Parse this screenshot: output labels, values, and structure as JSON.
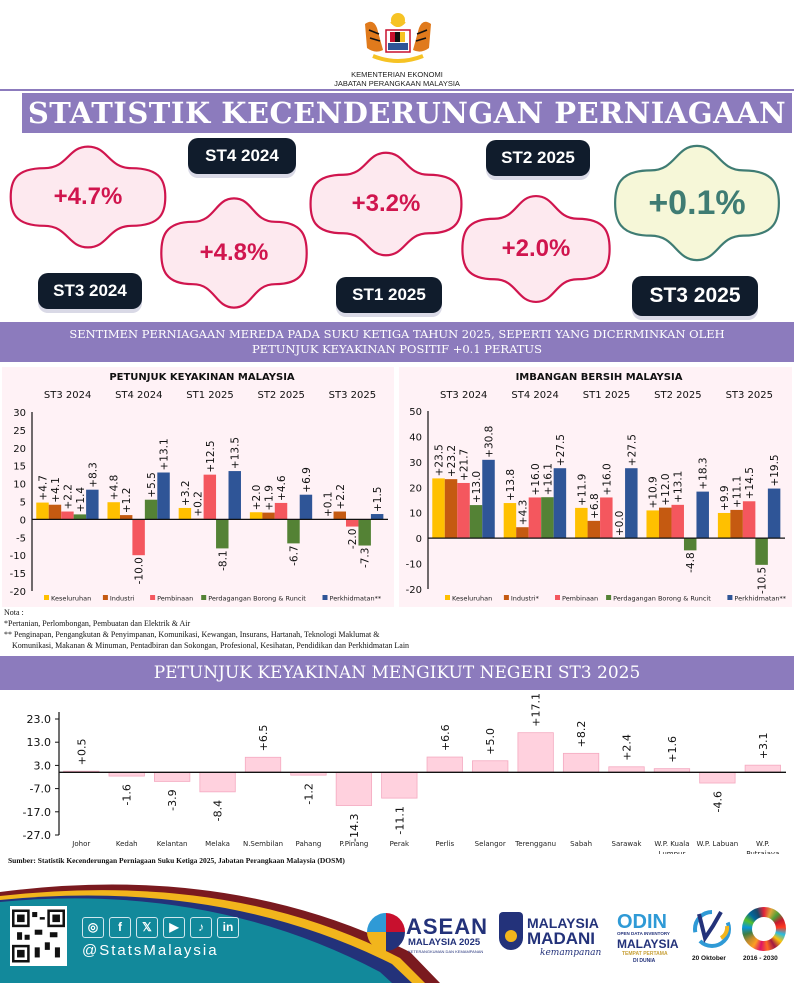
{
  "header": {
    "ministry_line1": "KEMENTERIAN EKONOMI",
    "ministry_line2": "JABATAN PERANGKAAN MALAYSIA",
    "title": "STATISTIK KECENDERUNGAN PERNIAGAAN"
  },
  "highlights": [
    {
      "quarter": "ST3 2024",
      "value": "+4.7%"
    },
    {
      "quarter": "ST4 2024",
      "value": "+4.8%"
    },
    {
      "quarter": "ST1 2025",
      "value": "+3.2%"
    },
    {
      "quarter": "ST2 2025",
      "value": "+2.0%"
    },
    {
      "quarter": "ST3 2025",
      "value": "+0.1%"
    }
  ],
  "colors": {
    "banner": "#8c7bbd",
    "accent_red": "#d0154e",
    "accent_green": "#3f7c73",
    "keseluruhan": "#ffc000",
    "industri": "#c55a11",
    "pembinaan": "#f4575e",
    "perdagangan": "#548235",
    "perkhidmatan": "#2f5597",
    "state_bar": "#ffd1de"
  },
  "subtitle_line1": "SENTIMEN PERNIAGAAN MEREDA PADA SUKU KETIGA TAHUN 2025, SEPERTI YANG DICERMINKAN OLEH",
  "subtitle_line2": "PETUNJUK KEYAKINAN POSITIF +0.1 PERATUS",
  "notes": {
    "heading": "Nota :",
    "line1": "*Pertanian, Perlombongan, Pembuatan dan Elektrik & Air",
    "line2": "** Penginapan, Pengangkutan & Penyimpanan, Komunikasi, Kewangan, Insurans, Hartanah,  Teknologi Maklumat &",
    "line3": "Komunikasi, Makanan & Minuman, Pentadbiran dan Sokongan, Profesional, Kesihatan, Pendidikan dan Perkhidmatan Lain"
  },
  "state_banner": "PETUNJUK KEYAKINAN MENGIKUT NEGERI ST3 2025",
  "source": "Sumber: Statistik  Kecenderungan Perniagaan  Suku Ketiga 2025, Jabatan Perangkaan Malaysia  (DOSM)",
  "footer": {
    "handle": "@StatsMalaysia",
    "social_icons": [
      "instagram-icon",
      "facebook-icon",
      "x-icon",
      "youtube-icon",
      "tiktok-icon",
      "linkedin-icon"
    ],
    "social_glyphs": [
      "◎",
      "f",
      "𝕏",
      "▶",
      "♪",
      "in"
    ],
    "asean_title": "ASEAN",
    "asean_sub": "MALAYSIA 2025",
    "asean_tag": "KETERANGKUMAN DAN KEMAMPANAN",
    "madani_1": "MALAYSIA",
    "madani_2": "MADANI",
    "madani_3": "kemampanan",
    "odin_1": "ODIN",
    "odin_2": "OPEN DATA INVENTORY",
    "odin_3": "MALAYSIA",
    "odin_4": "TEMPAT PERTAMA",
    "odin_5": "DI DUNIA",
    "stats_day": "20 Oktober",
    "sdg_years": "2016 - 2030"
  },
  "chart_data": [
    {
      "type": "bar",
      "title": "PETUNJUK KEYAKINAN MALAYSIA",
      "categories": [
        "ST3 2024",
        "ST4 2024",
        "ST1 2025",
        "ST2 2025",
        "ST3 2025"
      ],
      "ylim": [
        -20,
        30
      ],
      "yticks": [
        30,
        25,
        20,
        15,
        10,
        5,
        0,
        -5,
        -10,
        -15,
        -20
      ],
      "legend_position": "bottom",
      "series": [
        {
          "name": "Keseluruhan",
          "values": [
            4.7,
            4.8,
            3.2,
            2.0,
            0.1
          ],
          "labels": [
            "+4.7",
            "+4.8",
            "+3.2",
            "+2.0",
            "+0.1"
          ]
        },
        {
          "name": "Industri",
          "values": [
            4.1,
            1.2,
            0.2,
            1.9,
            2.2
          ],
          "labels": [
            "+4.1",
            "+1.2",
            "+0.2",
            "+1.9",
            "+2.2"
          ]
        },
        {
          "name": "Pembinaan",
          "values": [
            2.2,
            -10.0,
            12.5,
            4.6,
            -2.0
          ],
          "labels": [
            "+2.2",
            "-10.0",
            "+12.5",
            "+4.6",
            "-2.0"
          ]
        },
        {
          "name": "Perdagangan Borong & Runcit",
          "values": [
            1.4,
            5.5,
            -8.1,
            -6.7,
            -7.3
          ],
          "labels": [
            "+1.4",
            "+5.5",
            "-8.1",
            "-6.7",
            "-7.3"
          ]
        },
        {
          "name": "Perkhidmatan**",
          "values": [
            8.3,
            13.1,
            13.5,
            6.9,
            1.5
          ],
          "labels": [
            "+8.3",
            "+13.1",
            "+13.5",
            "+6.9",
            "+1.5"
          ]
        }
      ]
    },
    {
      "type": "bar",
      "title": "IMBANGAN BERSIH MALAYSIA",
      "categories": [
        "ST3 2024",
        "ST4 2024",
        "ST1 2025",
        "ST2 2025",
        "ST3 2025"
      ],
      "ylim": [
        -20,
        50
      ],
      "yticks": [
        50,
        40,
        30,
        20,
        10,
        0,
        -10,
        -20
      ],
      "legend_position": "bottom",
      "series": [
        {
          "name": "Keseluruhan",
          "values": [
            23.5,
            13.8,
            11.9,
            10.9,
            9.9
          ],
          "labels": [
            "+23.5",
            "+13.8",
            "+11.9",
            "+10.9",
            "+9.9"
          ]
        },
        {
          "name": "Industri*",
          "values": [
            23.2,
            4.3,
            6.8,
            12.0,
            11.1
          ],
          "labels": [
            "+23.2",
            "+4.3",
            "+6.8",
            "+12.0",
            "+11.1"
          ]
        },
        {
          "name": "Pembinaan",
          "values": [
            21.7,
            16.0,
            16.0,
            13.1,
            14.5
          ],
          "labels": [
            "+21.7",
            "+16.0",
            "+16.0",
            "+13.1",
            "+14.5"
          ]
        },
        {
          "name": "Perdagangan Borong & Runcit",
          "values": [
            13.0,
            16.1,
            0.0,
            -4.8,
            -10.5
          ],
          "labels": [
            "+13.0",
            "+16.1",
            "+0.0",
            "-4.8",
            "-10.5"
          ]
        },
        {
          "name": "Perkhidmatan**",
          "values": [
            30.8,
            27.5,
            27.5,
            18.3,
            19.5
          ],
          "labels": [
            "+30.8",
            "+27.5",
            "+27.5",
            "+18.3",
            "+19.5"
          ]
        }
      ]
    },
    {
      "type": "bar",
      "title": "PETUNJUK KEYAKINAN MENGIKUT NEGERI ST3 2025",
      "categories": [
        "Johor",
        "Kedah",
        "Kelantan",
        "Melaka",
        "N.Sembilan",
        "Pahang",
        "P.Pinang",
        "Perak",
        "Perlis",
        "Selangor",
        "Terengganu",
        "Sabah",
        "Sarawak",
        "W.P. Kuala Lumpur",
        "W.P. Labuan",
        "W.P. Putrajaya"
      ],
      "values": [
        0.5,
        -1.6,
        -3.9,
        -8.4,
        6.5,
        -1.2,
        -14.3,
        -11.1,
        6.6,
        5.0,
        17.1,
        8.2,
        2.4,
        1.6,
        -4.6,
        3.1
      ],
      "labels": [
        "+0.5",
        "-1.6",
        "-3.9",
        "-8.4",
        "+6.5",
        "-1.2",
        "-14.3",
        "-11.1",
        "+6.6",
        "+5.0",
        "+17.1",
        "+8.2",
        "+2.4",
        "+1.6",
        "-4.6",
        "+3.1"
      ],
      "ylim": [
        -27,
        23
      ],
      "yticks": [
        "23.0",
        "13.0",
        "3.0",
        "-7.0",
        "-17.0",
        "-27.0"
      ]
    }
  ]
}
